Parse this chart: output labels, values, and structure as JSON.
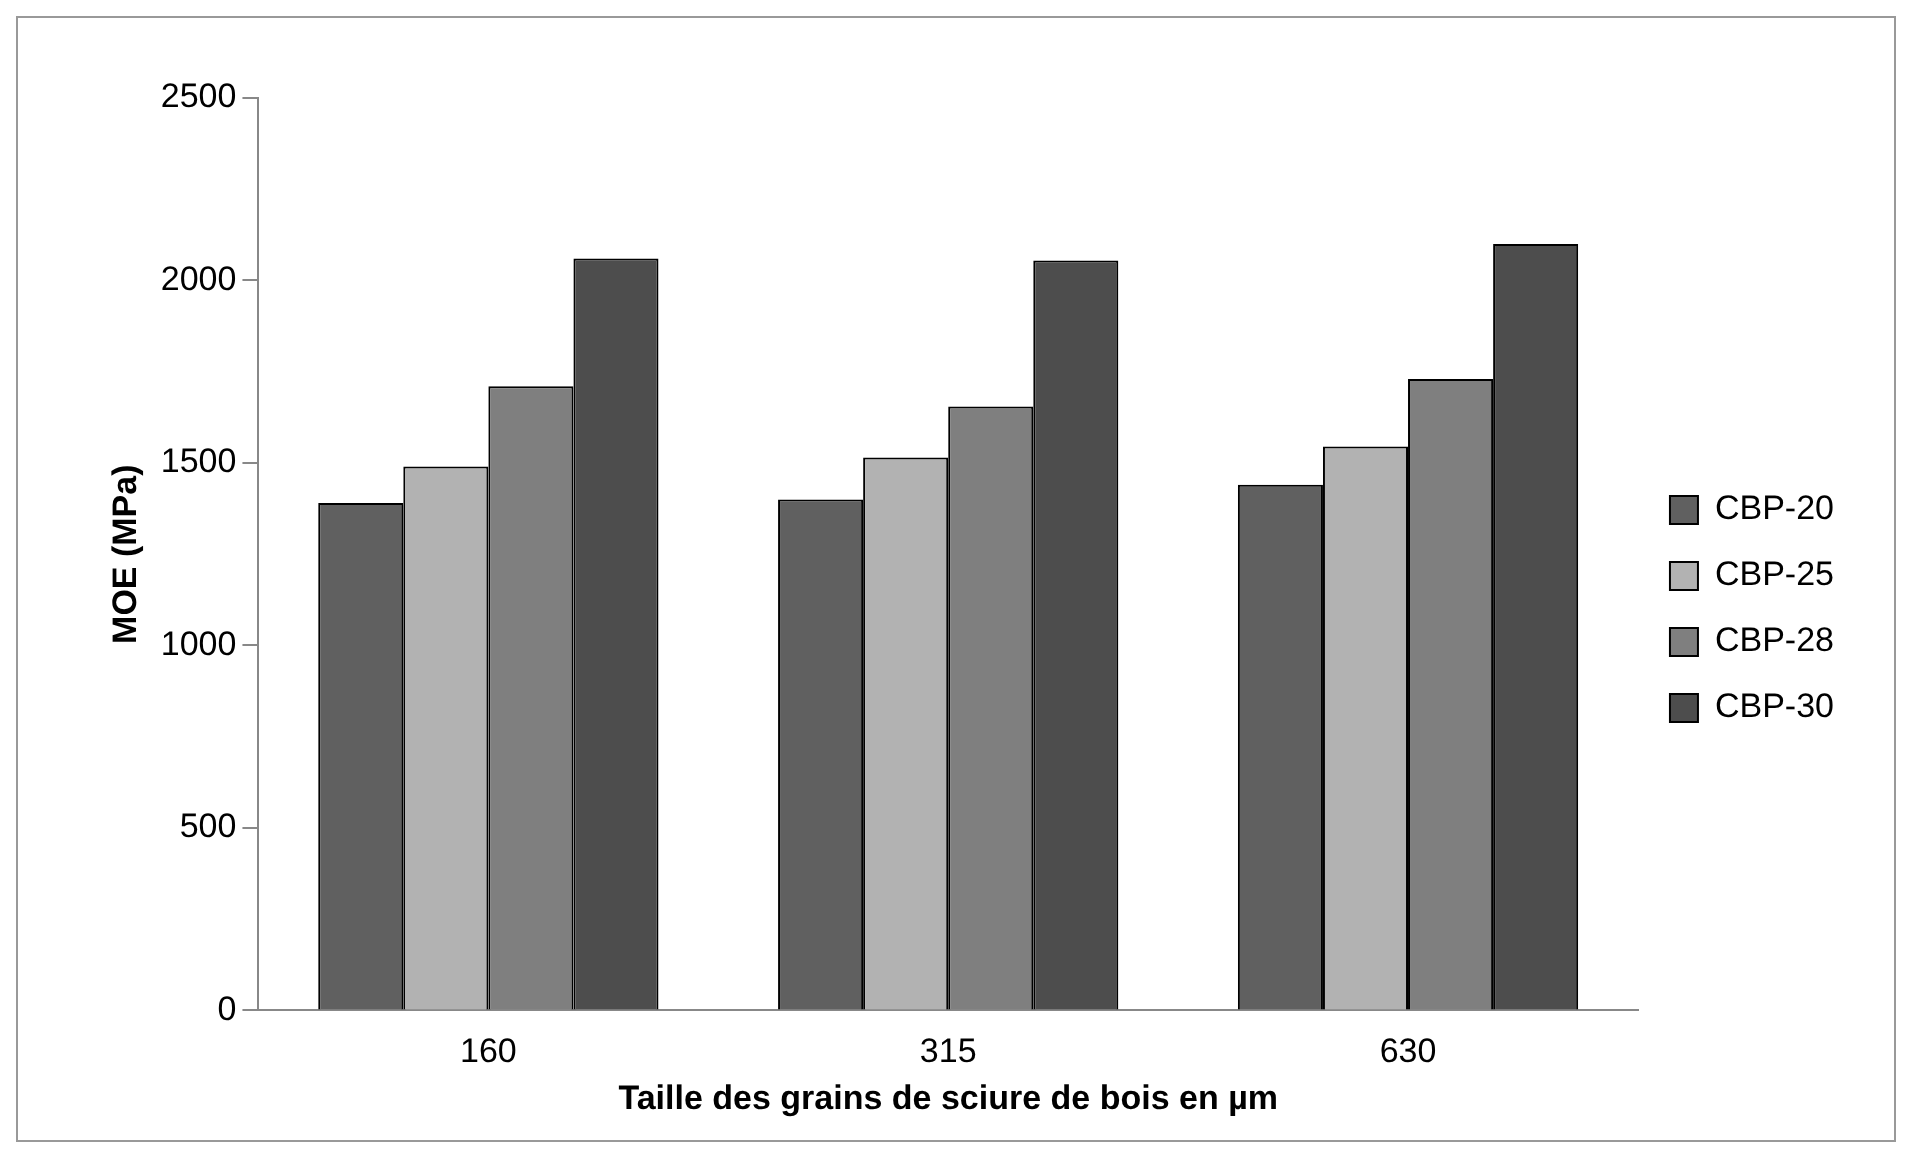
{
  "chart_data": {
    "type": "bar",
    "xlabel": "Taille des grains de sciure de bois en µm",
    "ylabel": "MOE (MPa)",
    "categories": [
      "160",
      "315",
      "630"
    ],
    "series": [
      {
        "name": "CBP-20",
        "color": "#606060",
        "values": [
          1390,
          1400,
          1440
        ]
      },
      {
        "name": "CBP-25",
        "color": "#b2b2b2",
        "values": [
          1490,
          1515,
          1545
        ]
      },
      {
        "name": "CBP-28",
        "color": "#7f7f7f",
        "values": [
          1710,
          1655,
          1730
        ]
      },
      {
        "name": "CBP-30",
        "color": "#4d4d4d",
        "values": [
          2060,
          2055,
          2100
        ]
      }
    ],
    "ylim": [
      0,
      2500
    ],
    "yticks": [
      0,
      500,
      1000,
      1500,
      2000,
      2500
    ],
    "grid": false,
    "legend": "right"
  }
}
